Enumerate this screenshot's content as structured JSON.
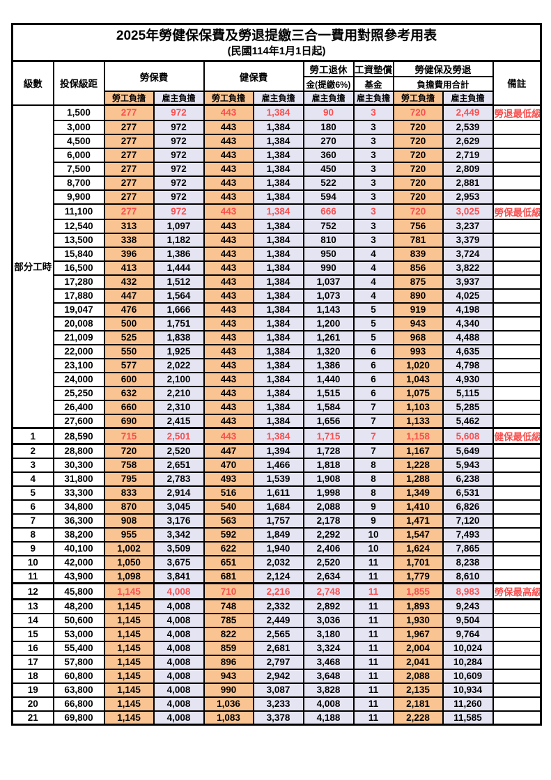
{
  "page": {
    "title": "2025年勞健保保費及勞退提繳三合一費用對照參考用表",
    "subtitle": "(民國114年1月1日起)"
  },
  "colors": {
    "employee_bg": "#F9C392",
    "employer_bg": "#E5E4F2",
    "highlight_text": "#F75050",
    "border": "#000000"
  },
  "header": {
    "level": "級數",
    "bracket": "投保級距",
    "labor_insurance": "勞保費",
    "health_insurance": "健保費",
    "pension_line1": "勞工退休",
    "pension_line2": "金(提繳6%)",
    "wage_fund_line1": "工資墊償",
    "wage_fund_line2": "基金",
    "total_line1": "勞健保及勞退",
    "total_line2": "負擔費用合計",
    "remark": "備註",
    "employee_share": "勞工負擔",
    "employer_share": "雇主負擔"
  },
  "table": {
    "part_time_label": "部分工時",
    "part_time_rowspan": 23,
    "rows": [
      {
        "level": null,
        "bracket": "1,500",
        "values": [
          "277",
          "972",
          "443",
          "1,384",
          "90",
          "3",
          "720",
          "2,449"
        ],
        "remark": "勞退最低級距",
        "highlight": true,
        "boxed": false
      },
      {
        "level": null,
        "bracket": "3,000",
        "values": [
          "277",
          "972",
          "443",
          "1,384",
          "180",
          "3",
          "720",
          "2,539"
        ],
        "remark": "",
        "highlight": false,
        "boxed": false
      },
      {
        "level": null,
        "bracket": "4,500",
        "values": [
          "277",
          "972",
          "443",
          "1,384",
          "270",
          "3",
          "720",
          "2,629"
        ],
        "remark": "",
        "highlight": false,
        "boxed": false
      },
      {
        "level": null,
        "bracket": "6,000",
        "values": [
          "277",
          "972",
          "443",
          "1,384",
          "360",
          "3",
          "720",
          "2,719"
        ],
        "remark": "",
        "highlight": false,
        "boxed": false
      },
      {
        "level": null,
        "bracket": "7,500",
        "values": [
          "277",
          "972",
          "443",
          "1,384",
          "450",
          "3",
          "720",
          "2,809"
        ],
        "remark": "",
        "highlight": false,
        "boxed": false
      },
      {
        "level": null,
        "bracket": "8,700",
        "values": [
          "277",
          "972",
          "443",
          "1,384",
          "522",
          "3",
          "720",
          "2,881"
        ],
        "remark": "",
        "highlight": false,
        "boxed": false
      },
      {
        "level": null,
        "bracket": "9,900",
        "values": [
          "277",
          "972",
          "443",
          "1,384",
          "594",
          "3",
          "720",
          "2,953"
        ],
        "remark": "",
        "highlight": false,
        "boxed": false
      },
      {
        "level": null,
        "bracket": "11,100",
        "values": [
          "277",
          "972",
          "443",
          "1,384",
          "666",
          "3",
          "720",
          "3,025"
        ],
        "remark": "勞保最低級距",
        "highlight": true,
        "boxed": false
      },
      {
        "level": null,
        "bracket": "12,540",
        "values": [
          "313",
          "1,097",
          "443",
          "1,384",
          "752",
          "3",
          "756",
          "3,237"
        ],
        "remark": "",
        "highlight": false,
        "boxed": false
      },
      {
        "level": null,
        "bracket": "13,500",
        "values": [
          "338",
          "1,182",
          "443",
          "1,384",
          "810",
          "3",
          "781",
          "3,379"
        ],
        "remark": "",
        "highlight": false,
        "boxed": false
      },
      {
        "level": null,
        "bracket": "15,840",
        "values": [
          "396",
          "1,386",
          "443",
          "1,384",
          "950",
          "4",
          "839",
          "3,724"
        ],
        "remark": "",
        "highlight": false,
        "boxed": false
      },
      {
        "level": null,
        "bracket": "16,500",
        "values": [
          "413",
          "1,444",
          "443",
          "1,384",
          "990",
          "4",
          "856",
          "3,822"
        ],
        "remark": "",
        "highlight": false,
        "boxed": false
      },
      {
        "level": null,
        "bracket": "17,280",
        "values": [
          "432",
          "1,512",
          "443",
          "1,384",
          "1,037",
          "4",
          "875",
          "3,937"
        ],
        "remark": "",
        "highlight": false,
        "boxed": false
      },
      {
        "level": null,
        "bracket": "17,880",
        "values": [
          "447",
          "1,564",
          "443",
          "1,384",
          "1,073",
          "4",
          "890",
          "4,025"
        ],
        "remark": "",
        "highlight": false,
        "boxed": false
      },
      {
        "level": null,
        "bracket": "19,047",
        "values": [
          "476",
          "1,666",
          "443",
          "1,384",
          "1,143",
          "5",
          "919",
          "4,198"
        ],
        "remark": "",
        "highlight": false,
        "boxed": false
      },
      {
        "level": null,
        "bracket": "20,008",
        "values": [
          "500",
          "1,751",
          "443",
          "1,384",
          "1,200",
          "5",
          "943",
          "4,340"
        ],
        "remark": "",
        "highlight": false,
        "boxed": false
      },
      {
        "level": null,
        "bracket": "21,009",
        "values": [
          "525",
          "1,838",
          "443",
          "1,384",
          "1,261",
          "5",
          "968",
          "4,488"
        ],
        "remark": "",
        "highlight": false,
        "boxed": false
      },
      {
        "level": null,
        "bracket": "22,000",
        "values": [
          "550",
          "1,925",
          "443",
          "1,384",
          "1,320",
          "6",
          "993",
          "4,635"
        ],
        "remark": "",
        "highlight": false,
        "boxed": false
      },
      {
        "level": null,
        "bracket": "23,100",
        "values": [
          "577",
          "2,022",
          "443",
          "1,384",
          "1,386",
          "6",
          "1,020",
          "4,798"
        ],
        "remark": "",
        "highlight": false,
        "boxed": false
      },
      {
        "level": null,
        "bracket": "24,000",
        "values": [
          "600",
          "2,100",
          "443",
          "1,384",
          "1,440",
          "6",
          "1,043",
          "4,930"
        ],
        "remark": "",
        "highlight": false,
        "boxed": false
      },
      {
        "level": null,
        "bracket": "25,250",
        "values": [
          "632",
          "2,210",
          "443",
          "1,384",
          "1,515",
          "6",
          "1,075",
          "5,115"
        ],
        "remark": "",
        "highlight": false,
        "boxed": false
      },
      {
        "level": null,
        "bracket": "26,400",
        "values": [
          "660",
          "2,310",
          "443",
          "1,384",
          "1,584",
          "7",
          "1,103",
          "5,285"
        ],
        "remark": "",
        "highlight": false,
        "boxed": false
      },
      {
        "level": null,
        "bracket": "27,600",
        "values": [
          "690",
          "2,415",
          "443",
          "1,384",
          "1,656",
          "7",
          "1,133",
          "5,462"
        ],
        "remark": "",
        "highlight": false,
        "boxed": false
      },
      {
        "level": "1",
        "bracket": "28,590",
        "values": [
          "715",
          "2,501",
          "443",
          "1,384",
          "1,715",
          "7",
          "1,158",
          "5,608"
        ],
        "remark": "健保最低級距",
        "highlight": true,
        "boxed": true
      },
      {
        "level": "2",
        "bracket": "28,800",
        "values": [
          "720",
          "2,520",
          "447",
          "1,394",
          "1,728",
          "7",
          "1,167",
          "5,649"
        ],
        "remark": "",
        "highlight": false,
        "boxed": false
      },
      {
        "level": "3",
        "bracket": "30,300",
        "values": [
          "758",
          "2,651",
          "470",
          "1,466",
          "1,818",
          "8",
          "1,228",
          "5,943"
        ],
        "remark": "",
        "highlight": false,
        "boxed": false
      },
      {
        "level": "4",
        "bracket": "31,800",
        "values": [
          "795",
          "2,783",
          "493",
          "1,539",
          "1,908",
          "8",
          "1,288",
          "6,238"
        ],
        "remark": "",
        "highlight": false,
        "boxed": false
      },
      {
        "level": "5",
        "bracket": "33,300",
        "values": [
          "833",
          "2,914",
          "516",
          "1,611",
          "1,998",
          "8",
          "1,349",
          "6,531"
        ],
        "remark": "",
        "highlight": false,
        "boxed": false
      },
      {
        "level": "6",
        "bracket": "34,800",
        "values": [
          "870",
          "3,045",
          "540",
          "1,684",
          "2,088",
          "9",
          "1,410",
          "6,826"
        ],
        "remark": "",
        "highlight": false,
        "boxed": false
      },
      {
        "level": "7",
        "bracket": "36,300",
        "values": [
          "908",
          "3,176",
          "563",
          "1,757",
          "2,178",
          "9",
          "1,471",
          "7,120"
        ],
        "remark": "",
        "highlight": false,
        "boxed": false
      },
      {
        "level": "8",
        "bracket": "38,200",
        "values": [
          "955",
          "3,342",
          "592",
          "1,849",
          "2,292",
          "10",
          "1,547",
          "7,493"
        ],
        "remark": "",
        "highlight": false,
        "boxed": false
      },
      {
        "level": "9",
        "bracket": "40,100",
        "values": [
          "1,002",
          "3,509",
          "622",
          "1,940",
          "2,406",
          "10",
          "1,624",
          "7,865"
        ],
        "remark": "",
        "highlight": false,
        "boxed": false
      },
      {
        "level": "10",
        "bracket": "42,000",
        "values": [
          "1,050",
          "3,675",
          "651",
          "2,032",
          "2,520",
          "11",
          "1,701",
          "8,238"
        ],
        "remark": "",
        "highlight": false,
        "boxed": false
      },
      {
        "level": "11",
        "bracket": "43,900",
        "values": [
          "1,098",
          "3,841",
          "681",
          "2,124",
          "2,634",
          "11",
          "1,779",
          "8,610"
        ],
        "remark": "",
        "highlight": false,
        "boxed": false
      },
      {
        "level": "12",
        "bracket": "45,800",
        "values": [
          "1,145",
          "4,008",
          "710",
          "2,216",
          "2,748",
          "11",
          "1,855",
          "8,983"
        ],
        "remark": "勞保最高級距",
        "highlight": true,
        "boxed": true
      },
      {
        "level": "13",
        "bracket": "48,200",
        "values": [
          "1,145",
          "4,008",
          "748",
          "2,332",
          "2,892",
          "11",
          "1,893",
          "9,243"
        ],
        "remark": "",
        "highlight": false,
        "boxed": false
      },
      {
        "level": "14",
        "bracket": "50,600",
        "values": [
          "1,145",
          "4,008",
          "785",
          "2,449",
          "3,036",
          "11",
          "1,930",
          "9,504"
        ],
        "remark": "",
        "highlight": false,
        "boxed": false
      },
      {
        "level": "15",
        "bracket": "53,000",
        "values": [
          "1,145",
          "4,008",
          "822",
          "2,565",
          "3,180",
          "11",
          "1,967",
          "9,764"
        ],
        "remark": "",
        "highlight": false,
        "boxed": false
      },
      {
        "level": "16",
        "bracket": "55,400",
        "values": [
          "1,145",
          "4,008",
          "859",
          "2,681",
          "3,324",
          "11",
          "2,004",
          "10,024"
        ],
        "remark": "",
        "highlight": false,
        "boxed": false
      },
      {
        "level": "17",
        "bracket": "57,800",
        "values": [
          "1,145",
          "4,008",
          "896",
          "2,797",
          "3,468",
          "11",
          "2,041",
          "10,284"
        ],
        "remark": "",
        "highlight": false,
        "boxed": false
      },
      {
        "level": "18",
        "bracket": "60,800",
        "values": [
          "1,145",
          "4,008",
          "943",
          "2,942",
          "3,648",
          "11",
          "2,088",
          "10,609"
        ],
        "remark": "",
        "highlight": false,
        "boxed": false
      },
      {
        "level": "19",
        "bracket": "63,800",
        "values": [
          "1,145",
          "4,008",
          "990",
          "3,087",
          "3,828",
          "11",
          "2,135",
          "10,934"
        ],
        "remark": "",
        "highlight": false,
        "boxed": false
      },
      {
        "level": "20",
        "bracket": "66,800",
        "values": [
          "1,145",
          "4,008",
          "1,036",
          "3,233",
          "4,008",
          "11",
          "2,181",
          "11,260"
        ],
        "remark": "",
        "highlight": false,
        "boxed": false
      },
      {
        "level": "21",
        "bracket": "69,800",
        "values": [
          "1,145",
          "4,008",
          "1,083",
          "3,378",
          "4,188",
          "11",
          "2,228",
          "11,585"
        ],
        "remark": "",
        "highlight": false,
        "boxed": false
      }
    ]
  }
}
